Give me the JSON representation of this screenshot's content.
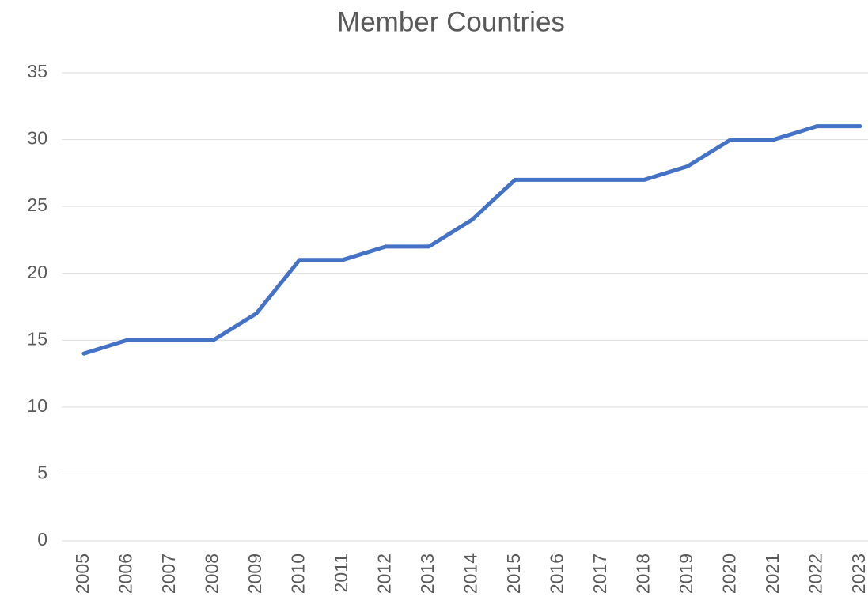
{
  "chart_data": {
    "type": "line",
    "title": "Member Countries",
    "categories": [
      "2005",
      "2006",
      "2007",
      "2008",
      "2009",
      "2010",
      "2011",
      "2012",
      "2013",
      "2014",
      "2015",
      "2016",
      "2017",
      "2018",
      "2019",
      "2020",
      "2021",
      "2022",
      "2023"
    ],
    "series": [
      {
        "name": "Member Countries",
        "color": "#4472c4",
        "values": [
          14,
          15,
          15,
          15,
          17,
          21,
          21,
          22,
          22,
          24,
          27,
          27,
          27,
          27,
          28,
          30,
          30,
          31,
          31
        ]
      }
    ],
    "ylim": [
      0,
      35
    ],
    "yticks": [
      0,
      5,
      10,
      15,
      20,
      25,
      30,
      35
    ],
    "grid": true
  }
}
